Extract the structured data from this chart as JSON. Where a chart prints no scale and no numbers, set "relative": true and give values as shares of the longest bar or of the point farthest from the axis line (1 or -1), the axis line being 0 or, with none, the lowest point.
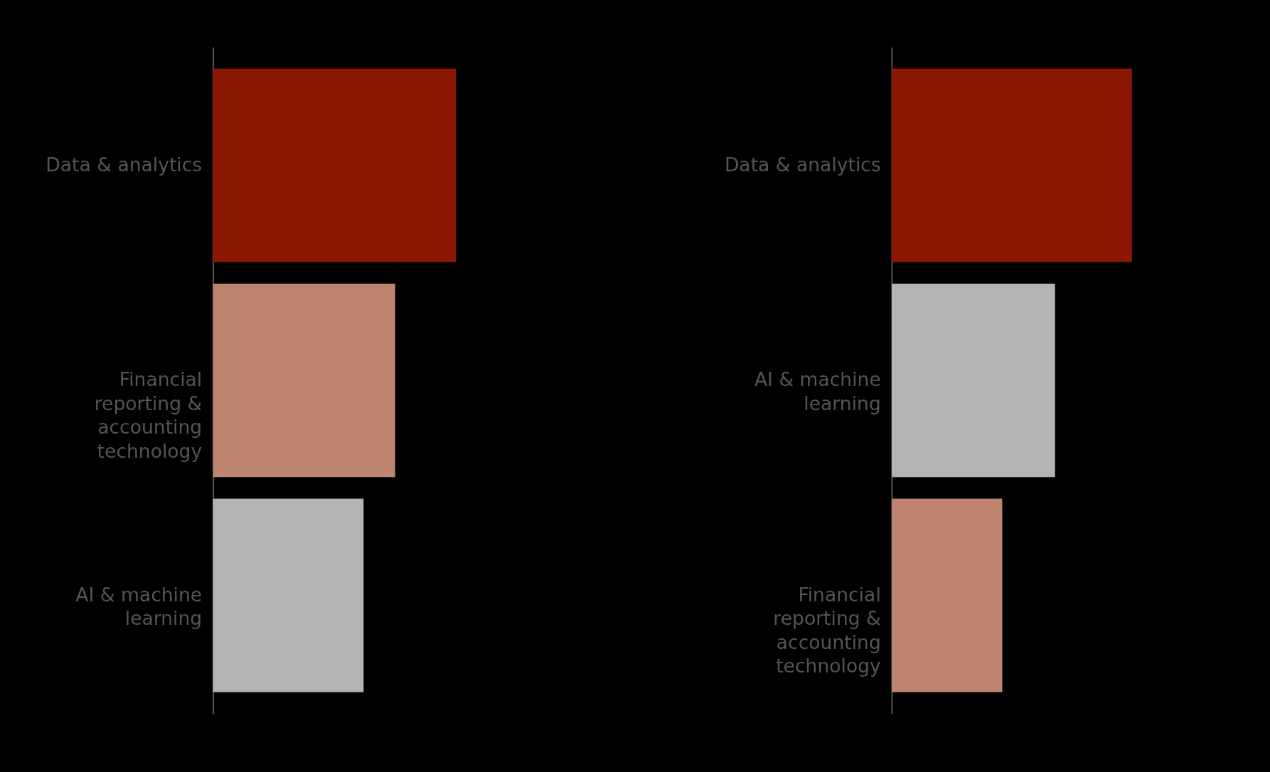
{
  "chart_data": [
    {
      "type": "bar",
      "orientation": "horizontal",
      "relative": true,
      "categories": [
        "Data & analytics",
        "Financial reporting & accounting technology",
        "AI & machine learning"
      ],
      "values": [
        1,
        0.75,
        0.62
      ],
      "colors": [
        "#8b1702",
        "#bd8570",
        "#b3b3b3"
      ]
    },
    {
      "type": "bar",
      "orientation": "horizontal",
      "relative": true,
      "categories": [
        "Data & analytics",
        "AI & machine learning",
        "Financial reporting & accounting technology"
      ],
      "values": [
        1,
        0.68,
        0.46
      ],
      "colors": [
        "#8b1702",
        "#b3b3b3",
        "#bd8570"
      ]
    }
  ]
}
